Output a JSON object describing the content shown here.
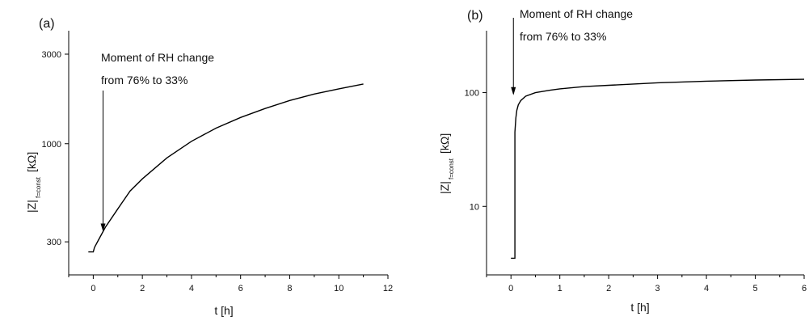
{
  "chart_data": [
    {
      "type": "line",
      "panel_label": "(a)",
      "xlabel": "t [h]",
      "ylabel_main": "|Z|",
      "ylabel_sub": "f=const",
      "ylabel_unit": "[kΩ]",
      "y_scale": "log",
      "xlim": [
        -1,
        12
      ],
      "ylim": [
        200,
        4000
      ],
      "x_ticks": [
        0,
        2,
        4,
        6,
        8,
        10,
        12
      ],
      "y_ticks": [
        300,
        1000,
        3000
      ],
      "annotation": [
        "Moment of RH change",
        "from 76% to 33%"
      ],
      "arrow_x": 0.4,
      "arrow_y": 340,
      "series": [
        {
          "x": [
            -0.2,
            0.0,
            0.05,
            0.2,
            0.5,
            1,
            1.5,
            2,
            3,
            4,
            5,
            6,
            7,
            8,
            9,
            10,
            11
          ],
          "y": [
            265,
            265,
            280,
            305,
            360,
            450,
            560,
            650,
            840,
            1030,
            1210,
            1380,
            1540,
            1700,
            1840,
            1960,
            2080
          ]
        }
      ]
    },
    {
      "type": "line",
      "panel_label": "(b)",
      "xlabel": "t [h]",
      "ylabel_main": "|Z|",
      "ylabel_sub": "f=const",
      "ylabel_unit": "[kΩ]",
      "y_scale": "log",
      "xlim": [
        -0.5,
        6
      ],
      "ylim": [
        2.5,
        350
      ],
      "x_ticks": [
        0,
        1,
        2,
        3,
        4,
        5,
        6
      ],
      "y_ticks": [
        10,
        100
      ],
      "annotation": [
        "Moment of RH change",
        "from 76% to 33%"
      ],
      "arrow_x": 0.05,
      "arrow_y": 95,
      "series": [
        {
          "x": [
            0.0,
            0.08,
            0.08,
            0.1,
            0.12,
            0.15,
            0.2,
            0.3,
            0.5,
            0.8,
            1,
            1.5,
            2,
            3,
            4,
            5,
            6
          ],
          "y": [
            3.5,
            3.5,
            45,
            60,
            70,
            78,
            85,
            93,
            100,
            105,
            108,
            113,
            116,
            122,
            126,
            129,
            131
          ]
        }
      ]
    }
  ]
}
